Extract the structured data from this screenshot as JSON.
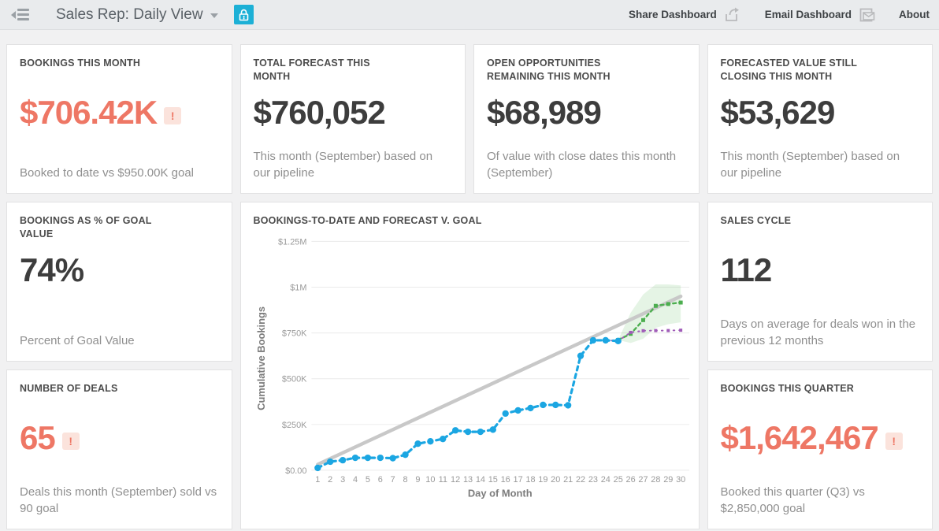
{
  "header": {
    "title": "Sales Rep: Daily View",
    "share_label": "Share Dashboard",
    "email_label": "Email Dashboard",
    "about_label": "About",
    "lock_button_color": "#1cb0d6"
  },
  "colors": {
    "alert_accent": "#ee7765",
    "alert_badge_bg": "#fbe3dc",
    "value_dark": "#3d3d3d"
  },
  "cards": {
    "bookings_month": {
      "title": "BOOKINGS THIS MONTH",
      "value": "$706.42K",
      "alert": "!",
      "subtitle": "Booked to date vs $950.00K goal"
    },
    "total_forecast": {
      "title": "TOTAL FORECAST THIS\nMONTH",
      "value": "$760,052",
      "subtitle": "This month (September) based on our pipeline"
    },
    "open_opps": {
      "title": "OPEN OPPORTUNITIES\nREMAINING THIS MONTH",
      "value": "$68,989",
      "subtitle": "Of value with close dates this month (September)"
    },
    "forecasted_value": {
      "title": "FORECASTED VALUE STILL\nCLOSING THIS MONTH",
      "value": "$53,629",
      "subtitle": "This month (September) based on our pipeline"
    },
    "pct_goal": {
      "title": "BOOKINGS AS % OF GOAL\nVALUE",
      "value": "74%",
      "subtitle": "Percent of Goal Value"
    },
    "sales_cycle": {
      "title": "SALES CYCLE",
      "value": "112",
      "subtitle": "Days on average for deals won in the previous 12 months"
    },
    "num_deals": {
      "title": "NUMBER OF DEALS",
      "value": "65",
      "alert": "!",
      "subtitle": "Deals this month (September) sold vs 90 goal"
    },
    "bookings_quarter": {
      "title": "BOOKINGS THIS QUARTER",
      "value": "$1,642,467",
      "alert": "!",
      "subtitle": "Booked this quarter (Q3) vs $2,850,000 goal"
    }
  },
  "chart_data": {
    "type": "line",
    "title": "BOOKINGS-TO-DATE AND FORECAST V. GOAL",
    "xlabel": "Day of Month",
    "ylabel": "Cumulative Bookings",
    "units": "thousands_usd",
    "grid": true,
    "legend": "none",
    "x_ticks": [
      1,
      2,
      3,
      4,
      5,
      6,
      7,
      8,
      9,
      10,
      11,
      12,
      13,
      14,
      15,
      16,
      17,
      18,
      19,
      20,
      21,
      22,
      23,
      24,
      25,
      26,
      27,
      28,
      29,
      30
    ],
    "y_ticks": [
      {
        "label": "$1.25M",
        "value": 1250
      },
      {
        "label": "$1M",
        "value": 1000
      },
      {
        "label": "$750K",
        "value": 750
      },
      {
        "label": "$500K",
        "value": 500
      },
      {
        "label": "$250K",
        "value": 250
      },
      {
        "label": "$0.00",
        "value": 0
      }
    ],
    "xlim": [
      1,
      30
    ],
    "ylim": [
      0,
      1300
    ],
    "band": {
      "name": "forecast-confidence-band",
      "color": "rgba(92,184,92,0.16)",
      "x": [
        25,
        26,
        27,
        28,
        29,
        30
      ],
      "lower": [
        712,
        695,
        718,
        778,
        798,
        808
      ],
      "upper": [
        712,
        860,
        960,
        1015,
        1015,
        1010
      ]
    },
    "series": [
      {
        "name": "goal-pace-line",
        "color": "#c8c8c8",
        "width": 4.5,
        "dash": "",
        "marker": "none",
        "marker_size": 0,
        "x": [
          1,
          30
        ],
        "values": [
          32,
          950
        ]
      },
      {
        "name": "forecast",
        "color": "#4cae4f",
        "width": 2.4,
        "dash": "4 4",
        "marker": "square",
        "marker_size": 5,
        "x": [
          25,
          26,
          27,
          28,
          29,
          30
        ],
        "values": [
          712,
          745,
          820,
          898,
          908,
          916
        ]
      },
      {
        "name": "pipeline-forecast",
        "color": "#a05cb8",
        "width": 2,
        "dash": "1.5 6",
        "marker": "square",
        "marker_size": 4,
        "x": [
          24,
          25,
          26,
          27,
          28,
          29,
          30
        ],
        "values": [
          710,
          707,
          753,
          762,
          763,
          763,
          765
        ]
      },
      {
        "name": "bookings-to-date",
        "color": "#1ba6e2",
        "width": 3.2,
        "dash": "5 5",
        "marker": "circle",
        "marker_size": 4.2,
        "x": [
          1,
          2,
          3,
          4,
          5,
          6,
          7,
          8,
          9,
          10,
          11,
          12,
          13,
          14,
          15,
          16,
          17,
          18,
          19,
          20,
          21,
          22,
          23,
          24,
          25
        ],
        "values": [
          13,
          47,
          55,
          68,
          68,
          68,
          66,
          85,
          145,
          158,
          171,
          218,
          210,
          210,
          222,
          310,
          327,
          340,
          357,
          357,
          355,
          625,
          710,
          710,
          706
        ]
      }
    ]
  }
}
